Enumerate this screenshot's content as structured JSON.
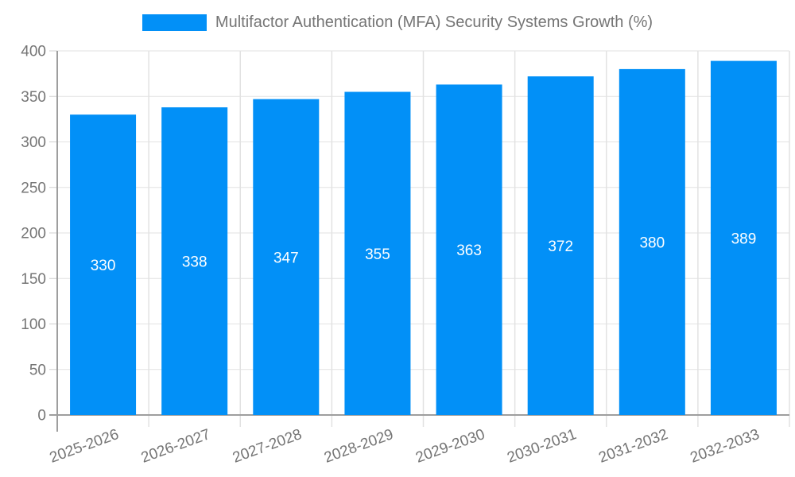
{
  "legend": {
    "label": "Multifactor Authentication (MFA) Security Systems Growth (%)",
    "position": "top",
    "marker": "rectangle"
  },
  "colors": {
    "bar": "#0290f7",
    "axis": "#9e9e9e",
    "grid": "#e2e2e2",
    "tick": "#d0d0d0",
    "label_text": "#757575",
    "value_label": "#ffffff",
    "background": "#ffffff"
  },
  "chart_data": {
    "type": "bar",
    "title": "Multifactor Authentication (MFA) Security Systems Growth (%)",
    "series": [
      {
        "name": "Multifactor Authentication (MFA) Security Systems Growth (%)",
        "values": [
          330,
          338,
          347,
          355,
          363,
          372,
          380,
          389
        ]
      }
    ],
    "categories": [
      "2025-2026",
      "2026-2027",
      "2027-2028",
      "2028-2029",
      "2029-2030",
      "2030-2031",
      "2031-2032",
      "2032-2033"
    ],
    "value_labels_shown": [
      330,
      338,
      347,
      355,
      363,
      372,
      380,
      389
    ],
    "value_label_position": "inside-center",
    "xlabel": "",
    "ylabel": "",
    "ylim": [
      0,
      400
    ],
    "ytick_step": 50,
    "yticks": [
      0,
      50,
      100,
      150,
      200,
      250,
      300,
      350,
      400
    ],
    "grid": true,
    "x_label_rotation_deg": -20,
    "legend_position": "top-center"
  }
}
